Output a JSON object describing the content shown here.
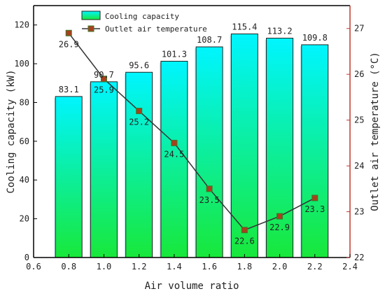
{
  "chart_data": {
    "type": "bar+line",
    "x": [
      0.8,
      1.0,
      1.2,
      1.4,
      1.6,
      1.8,
      2.0,
      2.2
    ],
    "x_ticks": [
      "0.6",
      "0.8",
      "1.0",
      "1.2",
      "1.4",
      "1.6",
      "1.8",
      "2.0",
      "2.2",
      "2.4"
    ],
    "xlim": [
      0.6,
      2.4
    ],
    "xlabel": "Air volume ratio",
    "y_left": {
      "label": "Cooling capacity (kW)",
      "lim": [
        0,
        130
      ],
      "ticks": [
        "0",
        "20",
        "40",
        "60",
        "80",
        "100",
        "120"
      ]
    },
    "y_right": {
      "label": "Outlet air temperature (°C)",
      "lim": [
        22,
        27.5
      ],
      "ticks": [
        "22",
        "23",
        "24",
        "25",
        "26",
        "27"
      ],
      "color": "#c0392b"
    },
    "series": [
      {
        "name": "Cooling capacity",
        "kind": "bar",
        "axis": "left",
        "values": [
          83.1,
          90.7,
          95.6,
          101.3,
          108.7,
          115.4,
          113.2,
          109.8
        ],
        "labels": [
          "83.1",
          "90.7",
          "95.6",
          "101.3",
          "108.7",
          "115.4",
          "113.2",
          "109.8"
        ],
        "color_top": "#00f5ff",
        "color_bottom": "#18e83a"
      },
      {
        "name": "Outlet air temperature",
        "kind": "line",
        "axis": "right",
        "values": [
          26.9,
          25.9,
          25.2,
          24.5,
          23.5,
          22.6,
          22.9,
          23.3
        ],
        "labels": [
          "26.9",
          "25.9",
          "25.2",
          "24.5",
          "23.5",
          "22.6",
          "22.9",
          "23.3"
        ],
        "line_color": "#333333",
        "marker_fill": "#a8401e",
        "marker_edge": "#3b7a2a"
      }
    ],
    "legend_position": "top-left",
    "grid": false
  }
}
